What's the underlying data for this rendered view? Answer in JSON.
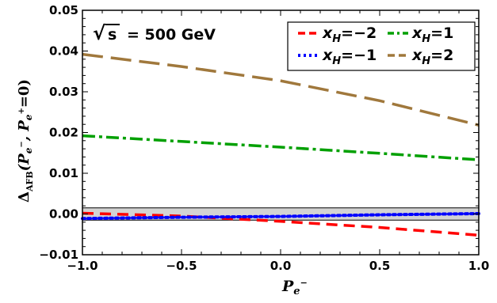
{
  "chart_data": {
    "type": "line",
    "xlim": [
      -1.0,
      1.0
    ],
    "ylim": [
      -0.01,
      0.05
    ],
    "x_ticks": [
      "−1.0",
      "−0.5",
      "0.0",
      "0.5",
      "1.0"
    ],
    "y_ticks": [
      "−0.01",
      "0.00",
      "0.01",
      "0.02",
      "0.03",
      "0.04",
      "0.05"
    ],
    "x_tick_values": [
      -1.0,
      -0.5,
      0.0,
      0.5,
      1.0
    ],
    "y_tick_values": [
      -0.01,
      0.0,
      0.01,
      0.02,
      0.03,
      0.04,
      0.05
    ],
    "xlabel": "P",
    "xlabel_sub": "e",
    "xlabel_sup": "−",
    "ylabel": "Δ_AFB(P_e−, P_e+=0)",
    "ylabel_parts": {
      "delta": "Δ",
      "sub": "AFB",
      "open": "(P",
      "e1": "e",
      "sup1": "−",
      "comma": ", P",
      "e2": "e",
      "sup2": "+",
      "close": "=0)"
    },
    "annotation": {
      "sqrt": "√",
      "s": "s",
      "rest": "= 500 GeV"
    },
    "band": {
      "lower": -0.0015,
      "upper": 0.0015,
      "color": "#d3d3d3"
    },
    "grid": false,
    "legend_position": "top-right",
    "legend_symbol": "x",
    "legend_sub": "H",
    "x": [
      -1.0,
      -0.5,
      0.0,
      0.5,
      1.0
    ],
    "series": [
      {
        "name": "−2",
        "color": "#ff0000",
        "dash": "dashed",
        "values": [
          0.0002,
          -0.0005,
          -0.0018,
          -0.0033,
          -0.0052
        ]
      },
      {
        "name": "−1",
        "color": "#0000ff",
        "dash": "dotted",
        "values": [
          -0.0011,
          -0.0008,
          -0.0006,
          -0.0002,
          0.0001
        ]
      },
      {
        "name": "1",
        "color": "#00a000",
        "dash": "dashdot",
        "values": [
          0.0192,
          0.0178,
          0.0164,
          0.0149,
          0.0133
        ]
      },
      {
        "name": "2",
        "color": "#a0783c",
        "dash": "longdash",
        "values": [
          0.0392,
          0.0362,
          0.0327,
          0.0278,
          0.0218
        ]
      }
    ]
  }
}
